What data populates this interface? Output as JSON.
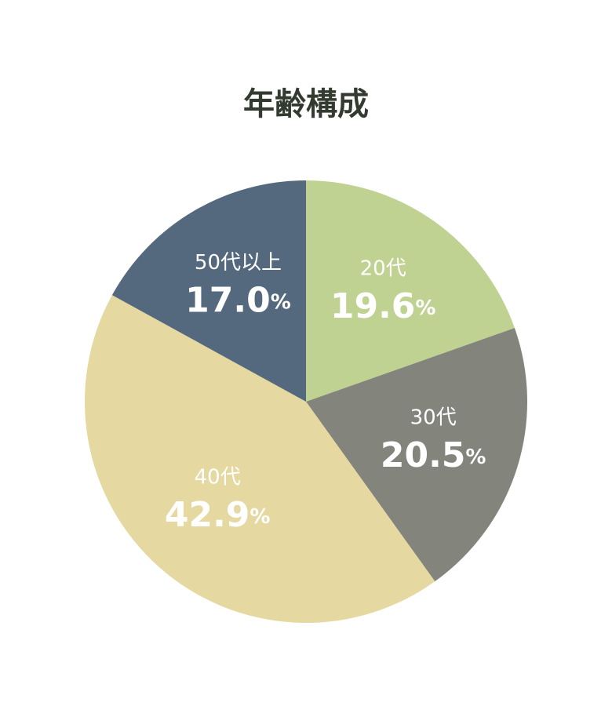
{
  "chart_data": {
    "type": "pie",
    "title": "年齢構成",
    "categories": [
      "20代",
      "30代",
      "40代",
      "50代以上"
    ],
    "values": [
      19.6,
      20.5,
      42.9,
      17.0
    ],
    "value_labels": [
      "19.6%",
      "20.5%",
      "42.9%",
      "17.0%"
    ],
    "colors": [
      "#c0d291",
      "#83857c",
      "#e5d9a1",
      "#54697e"
    ]
  }
}
